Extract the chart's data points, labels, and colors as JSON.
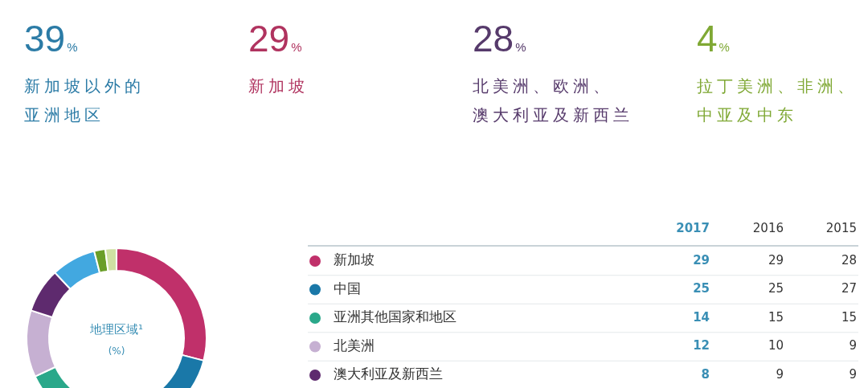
{
  "chart_data": [
    {
      "type": "other",
      "categories": [
        "新加坡以外的亚洲地区",
        "新加坡",
        "北美洲、欧洲、澳大利亚及新西兰",
        "拉丁美洲、非洲、中亚及中东"
      ],
      "values": [
        39,
        29,
        28,
        4
      ],
      "value_labels": [
        "39%",
        "29%",
        "28%",
        "4%"
      ],
      "colors": [
        "#2b7ba6",
        "#b0335f",
        "#563a6b",
        "#7fa834"
      ]
    },
    {
      "type": "donut",
      "title": "地理区域¹",
      "subtitle": "(%)",
      "categories": [
        "新加坡",
        "中国",
        "亚洲其他国家和地区",
        "北美洲",
        "澳大利亚及新西兰",
        null,
        null,
        null
      ],
      "colors": [
        "#c0306a",
        "#1a78a8",
        "#2aa88a",
        "#c6b0d2",
        "#5e2a6e",
        "#42a8e0",
        "#6a9e28",
        "#cfe0a2"
      ],
      "series": [
        {
          "name": "2017",
          "values": [
            29,
            25,
            14,
            12,
            8,
            8,
            2,
            2
          ],
          "value_labels": [
            "29",
            "25",
            "14",
            "12",
            "8",
            null,
            null,
            null
          ]
        }
      ],
      "legend": "right"
    },
    {
      "type": "other",
      "title": "2016",
      "values": [
        29,
        25,
        15,
        10,
        9
      ],
      "data_labels": true
    },
    {
      "type": "other",
      "title": "2015",
      "values": [
        28,
        27,
        15,
        9,
        9
      ],
      "data_labels": true
    }
  ]
}
